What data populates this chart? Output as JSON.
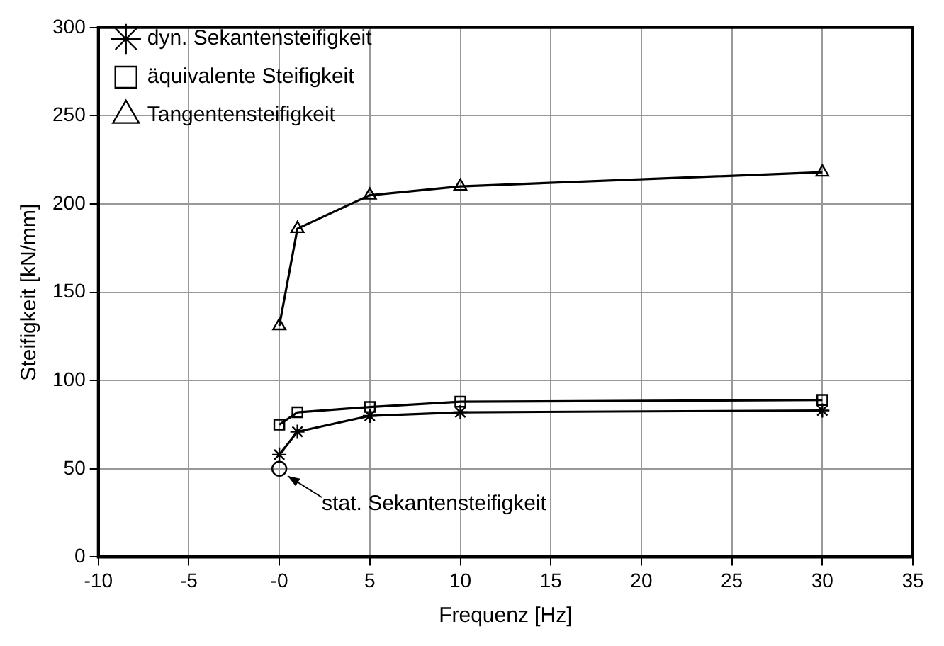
{
  "chart_data": {
    "type": "line",
    "xlabel": "Frequenz [Hz]",
    "ylabel": "Steifigkeit [kN/mm]",
    "xlim": [
      -10,
      35
    ],
    "xticks": [
      -10,
      -5,
      {
        "value": 0,
        "label": "-0"
      },
      5,
      10,
      15,
      20,
      25,
      30,
      35
    ],
    "ylim": [
      0,
      300
    ],
    "yticks": [
      0,
      50,
      100,
      150,
      200,
      250,
      300
    ],
    "grid": true,
    "legend": "top left",
    "series": [
      {
        "name": "dyn. Sekantensteifigkeit",
        "color": "#000000",
        "marker": "cross",
        "x": [
          0,
          1,
          5,
          10,
          30
        ],
        "values": [
          58,
          71,
          80,
          82,
          83
        ]
      },
      {
        "name": "äquivalente Steifigkeit",
        "color": "#000000",
        "marker": "square",
        "x": [
          0,
          1,
          5,
          10,
          30
        ],
        "values": [
          75,
          82,
          85,
          88,
          89
        ]
      },
      {
        "name": "Tangentensteifigkeit",
        "color": "#000000",
        "marker": "triangle",
        "x": [
          0,
          1,
          5,
          10,
          30
        ],
        "values": [
          131,
          186,
          205,
          210,
          218
        ]
      },
      {
        "type": "scatter",
        "color": "#000000",
        "marker": "circle",
        "x": [
          0
        ],
        "values": [
          50
        ]
      }
    ],
    "annotations": [
      {
        "text": "stat. Sekantensteifigkeit",
        "x": 0,
        "y": 50
      }
    ]
  }
}
